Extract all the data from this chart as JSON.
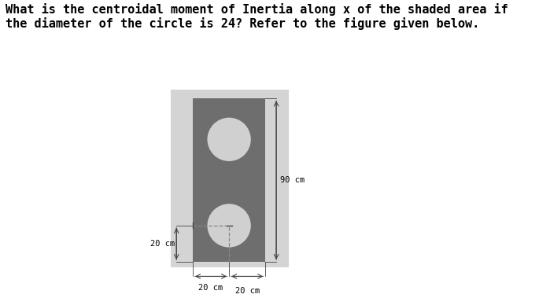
{
  "title_text": "What is the centroidal moment of Inertia along x of the shaded area if\nthe diameter of the circle is 24? Refer to the figure given below.",
  "title_fontsize": 11,
  "title_font": "monospace",
  "outer_bg": "#d4d4d4",
  "rect_color": "#6e6e6e",
  "circle_color": "#d0d0d0",
  "fig_bg": "#ffffff",
  "arrow_color": "#444444",
  "dashed_color": "#888888",
  "dim_90_label": "90 cm",
  "dim_20left_label": "20 cm",
  "dim_20right_label": "20 cm",
  "dim_20side_label": "20 cm"
}
